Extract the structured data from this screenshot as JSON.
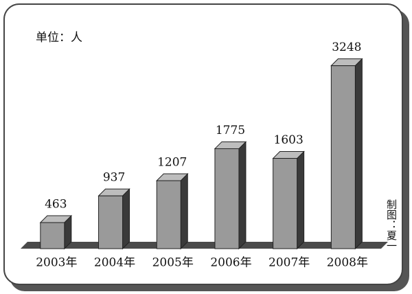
{
  "chart_data": {
    "type": "bar3d",
    "subtitle": "单位：人",
    "credit": "制图：夏一",
    "categories": [
      "2003年",
      "2004年",
      "2005年",
      "2006年",
      "2007年",
      "2008年"
    ],
    "values": [
      463,
      937,
      1207,
      1775,
      1603,
      3248
    ],
    "color": "#9a9a9a"
  }
}
